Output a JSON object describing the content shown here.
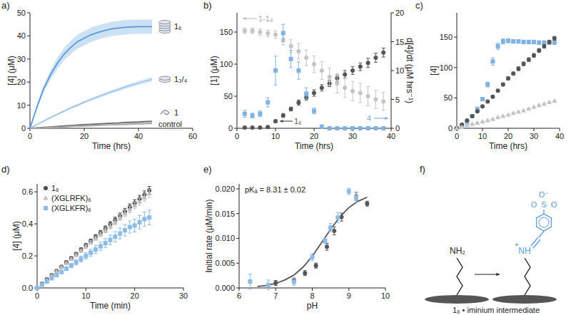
{
  "chart_data": [
    {
      "panel_label": "a)",
      "type": "line",
      "x_label": "Time (hrs)",
      "y_label": "[4] (μM)",
      "x": [
        0,
        2.5,
        5,
        7.5,
        10,
        12.5,
        15,
        17.5,
        20,
        22.5,
        25,
        27.5,
        30,
        32.5,
        35,
        37.5,
        40,
        42.5,
        45
      ],
      "xlim": [
        0,
        60
      ],
      "xticks": [
        0,
        20,
        40,
        60
      ],
      "ylim": [
        0,
        50
      ],
      "yticks": [
        0,
        10,
        20,
        30,
        40,
        50
      ],
      "series": [
        {
          "name": "1₆",
          "color": "#5b9ad9",
          "values": [
            0,
            9,
            17,
            23,
            28,
            32,
            35,
            37.5,
            39,
            40.5,
            41.5,
            42.3,
            43,
            43.4,
            43.7,
            43.9,
            44,
            44,
            44
          ],
          "error": [
            0,
            0.8,
            1.5,
            2,
            2.4,
            2.7,
            2.9,
            3,
            3.1,
            3.1,
            3.1,
            3.1,
            3.1,
            3.1,
            3.1,
            3.1,
            3.1,
            3.1,
            3.1
          ]
        },
        {
          "name": "1₃/₄",
          "color": "#9cc4ec",
          "values": [
            0,
            1.6,
            3.1,
            4.6,
            6,
            7.4,
            8.8,
            10,
            11.3,
            12.5,
            13.6,
            14.7,
            15.8,
            16.8,
            17.8,
            18.7,
            19.6,
            20.4,
            21.2
          ],
          "error": [
            0,
            0.1,
            0.2,
            0.3,
            0.4,
            0.5,
            0.5,
            0.6,
            0.6,
            0.7,
            0.7,
            0.8,
            0.8,
            0.9,
            0.9,
            1,
            1,
            1.1,
            1.1
          ]
        },
        {
          "name": "1",
          "color": "#6e6e6e",
          "values": [
            0,
            0.2,
            0.4,
            0.6,
            0.8,
            1,
            1.2,
            1.4,
            1.6,
            1.7,
            1.9,
            2,
            2.2,
            2.3,
            2.5,
            2.6,
            2.7,
            2.9,
            3
          ],
          "error": [
            0,
            0.1,
            0.1,
            0.1,
            0.2,
            0.2,
            0.2,
            0.2,
            0.3,
            0.3,
            0.3,
            0.3,
            0.3,
            0.3,
            0.4,
            0.4,
            0.4,
            0.4,
            0.4
          ]
        },
        {
          "name": "control",
          "color": "#a8a8a8",
          "values": [
            0,
            0.1,
            0.2,
            0.4,
            0.5,
            0.6,
            0.8,
            0.9,
            1,
            1.1,
            1.3,
            1.4,
            1.5,
            1.6,
            1.7,
            1.8,
            1.9,
            2,
            2.1
          ],
          "error": [
            0,
            0.1,
            0.1,
            0.1,
            0.2,
            0.2,
            0.2,
            0.2,
            0.3,
            0.3,
            0.3,
            0.3,
            0.3,
            0.3,
            0.4,
            0.4,
            0.4,
            0.4,
            0.4
          ]
        }
      ]
    },
    {
      "panel_label": "b)",
      "type": "scatter",
      "x_label": "Time (hrs)",
      "y_label": "[1] (μM)",
      "y2_label": "d[4]/dt (μM hrs⁻¹)",
      "x": [
        2,
        4,
        6,
        8,
        10,
        12,
        14,
        16,
        18,
        20,
        22,
        24,
        26,
        28,
        30,
        32,
        34,
        36,
        38
      ],
      "xlim": [
        0,
        40
      ],
      "xticks": [
        0,
        10,
        20,
        30,
        40
      ],
      "ylim": [
        0,
        180
      ],
      "yticks": [
        0,
        50,
        100,
        150
      ],
      "y2lim": [
        0,
        20
      ],
      "y2ticks": [
        0,
        5,
        10,
        15,
        20
      ],
      "series": [
        {
          "name": "1₆",
          "color": "#555555",
          "marker": "circle",
          "values": [
            1,
            1,
            1,
            2,
            11,
            20,
            30,
            40,
            48,
            55,
            63,
            70,
            78,
            84,
            90,
            96,
            102,
            110,
            118
          ],
          "error": [
            1,
            1,
            1,
            1,
            2,
            3,
            3,
            4,
            4,
            5,
            5,
            5,
            5,
            6,
            6,
            6,
            7,
            7,
            7
          ]
        },
        {
          "name": "1-1₄",
          "color": "#c4c4c4",
          "marker": "circle",
          "values": [
            152,
            152,
            150,
            148,
            146,
            138,
            128,
            120,
            110,
            100,
            90,
            80,
            70,
            63,
            58,
            55,
            50,
            45,
            42
          ],
          "error": [
            4,
            4,
            5,
            5,
            6,
            8,
            10,
            12,
            12,
            13,
            14,
            14,
            15,
            15,
            15,
            15,
            15,
            14,
            14
          ]
        },
        {
          "name": "4",
          "color": "#7fb2e5",
          "marker": "square",
          "axis": "y2",
          "values": [
            2.5,
            2.2,
            2.5,
            4.5,
            10,
            16.5,
            12,
            10,
            6,
            3,
            0.3,
            0,
            0,
            0,
            0,
            0,
            0,
            0,
            0
          ],
          "error": [
            0.6,
            0.4,
            0.5,
            0.8,
            2.5,
            1.5,
            1.5,
            1.5,
            1,
            0.5,
            0.2,
            0.1,
            0.1,
            0.1,
            0.1,
            0.1,
            0.1,
            0.1,
            0.1
          ]
        }
      ]
    },
    {
      "panel_label": "c)",
      "type": "scatter",
      "x_label": "Time (hrs)",
      "y_label": "[4]",
      "x": [
        0,
        2,
        4,
        6,
        8,
        10,
        12,
        14,
        16,
        18,
        20,
        22,
        24,
        26,
        28,
        30,
        32,
        34,
        36,
        38
      ],
      "xlim": [
        0,
        40
      ],
      "xticks": [
        0,
        10,
        20,
        30,
        40
      ],
      "ylim": [
        0,
        190
      ],
      "yticks": [
        0,
        50,
        100,
        150
      ],
      "series": [
        {
          "color": "#7fb2e5",
          "marker": "square",
          "values": [
            0,
            5,
            10,
            20,
            32,
            48,
            72,
            110,
            135,
            143,
            144,
            143,
            143,
            142,
            142,
            142,
            141,
            141,
            141,
            141
          ],
          "error": [
            0,
            0.5,
            1,
            1.5,
            2,
            3,
            4,
            6,
            5,
            4,
            3,
            3,
            3,
            3,
            3,
            3,
            3,
            3,
            3,
            3
          ]
        },
        {
          "color": "#555555",
          "marker": "circle",
          "values": [
            0,
            6,
            13,
            20,
            28,
            36,
            44,
            52,
            62,
            72,
            82,
            90,
            98,
            106,
            113,
            120,
            128,
            135,
            142,
            148
          ],
          "error": [
            0,
            0.5,
            1,
            1,
            1.5,
            1.5,
            2,
            2,
            2,
            2.5,
            2.5,
            2.5,
            3,
            3,
            3,
            3,
            3,
            3,
            3,
            3
          ]
        },
        {
          "color": "#c4c4c4",
          "marker": "triangle",
          "values": [
            0,
            2,
            5,
            7,
            9,
            11,
            13,
            15,
            18,
            20,
            22,
            25,
            27,
            29,
            32,
            35,
            38,
            40,
            43,
            45
          ],
          "error": [
            0,
            1,
            1,
            1,
            1,
            1,
            1,
            1,
            1,
            1,
            1,
            1,
            1,
            1,
            1,
            1,
            1,
            1,
            1,
            1
          ]
        }
      ]
    },
    {
      "panel_label": "d)",
      "type": "scatter",
      "x_label": "Time (min)",
      "y_label": "[4] (μM)",
      "legend": "upper left",
      "x": [
        0,
        1,
        2,
        3,
        4,
        5,
        6,
        7,
        8,
        9,
        10,
        11,
        12,
        13,
        14,
        15,
        16,
        17,
        18,
        19,
        20,
        21,
        22,
        23
      ],
      "xlim": [
        0,
        30
      ],
      "xticks": [
        0,
        10,
        20,
        30
      ],
      "ylim": [
        0,
        0.65
      ],
      "yticks": [
        {
          "value": 0,
          "label": "0.0"
        },
        {
          "value": 0.2,
          "label": "0.2"
        },
        {
          "value": 0.4,
          "label": "0.4"
        },
        {
          "value": 0.6,
          "label": "0.6"
        }
      ],
      "series": [
        {
          "name": "1₆",
          "color": "#4d4d4d",
          "marker": "circle",
          "values": [
            0,
            0.027,
            0.053,
            0.08,
            0.106,
            0.133,
            0.16,
            0.186,
            0.212,
            0.24,
            0.266,
            0.293,
            0.32,
            0.345,
            0.372,
            0.398,
            0.425,
            0.45,
            0.478,
            0.505,
            0.53,
            0.556,
            0.583,
            0.61
          ],
          "error": [
            0,
            0.002,
            0.003,
            0.004,
            0.005,
            0.006,
            0.007,
            0.008,
            0.009,
            0.01,
            0.011,
            0.012,
            0.013,
            0.014,
            0.015,
            0.016,
            0.017,
            0.018,
            0.019,
            0.02,
            0.021,
            0.022,
            0.023,
            0.024
          ]
        },
        {
          "name": "(XGLRFK)₆",
          "color": "#bdbdbd",
          "marker": "triangle",
          "values": [
            0,
            0.025,
            0.05,
            0.077,
            0.103,
            0.13,
            0.155,
            0.18,
            0.205,
            0.232,
            0.258,
            0.285,
            0.31,
            0.335,
            0.36,
            0.385,
            0.41,
            0.44,
            0.465,
            0.49,
            0.515,
            0.54,
            0.565,
            0.59
          ],
          "error": [
            0,
            0.002,
            0.003,
            0.004,
            0.005,
            0.006,
            0.007,
            0.008,
            0.009,
            0.01,
            0.011,
            0.012,
            0.013,
            0.014,
            0.015,
            0.016,
            0.017,
            0.018,
            0.019,
            0.02,
            0.021,
            0.022,
            0.023,
            0.024
          ]
        },
        {
          "name": "(XGLKFR)₆",
          "color": "#8dbbe8",
          "marker": "square",
          "values": [
            0,
            0.02,
            0.04,
            0.06,
            0.08,
            0.1,
            0.12,
            0.14,
            0.16,
            0.18,
            0.2,
            0.22,
            0.24,
            0.26,
            0.28,
            0.3,
            0.32,
            0.34,
            0.36,
            0.38,
            0.39,
            0.41,
            0.43,
            0.44
          ],
          "error": [
            0,
            0.002,
            0.004,
            0.006,
            0.008,
            0.01,
            0.012,
            0.014,
            0.016,
            0.018,
            0.02,
            0.022,
            0.024,
            0.026,
            0.028,
            0.03,
            0.032,
            0.034,
            0.036,
            0.038,
            0.04,
            0.042,
            0.044,
            0.046
          ]
        }
      ]
    },
    {
      "panel_label": "e)",
      "type": "scatter",
      "x_label": "pH",
      "y_label": "Initial rate (μM/min)",
      "annotation": "pKₐ = 8.31 ± 0.02",
      "xlim": [
        6,
        10
      ],
      "xticks": [
        6,
        7,
        8,
        9,
        10
      ],
      "ylim": [
        0,
        0.021
      ],
      "yticks": [
        {
          "value": 0,
          "label": "0.000"
        },
        {
          "value": 0.005,
          "label": "0.005"
        },
        {
          "value": 0.01,
          "label": "0.010"
        },
        {
          "value": 0.015,
          "label": "0.015"
        },
        {
          "value": 0.02,
          "label": "0.020"
        }
      ],
      "series": [
        {
          "type": "line",
          "color": "#555555",
          "x": [
            6.5,
            6.75,
            7,
            7.25,
            7.5,
            7.75,
            8,
            8.25,
            8.5,
            8.75,
            9,
            9.25,
            9.5
          ],
          "values": [
            0.0003,
            0.0005,
            0.0009,
            0.0016,
            0.0026,
            0.0042,
            0.0064,
            0.0091,
            0.0118,
            0.0143,
            0.0162,
            0.0175,
            0.0183
          ]
        },
        {
          "color": "#555555",
          "marker": "circle",
          "x": [
            7,
            7.5,
            7.8,
            8.1,
            8.4,
            8.6,
            8.8,
            9.2,
            9.5
          ],
          "values": [
            0.001,
            0.0015,
            0.003,
            0.0045,
            0.0083,
            0.0115,
            0.0143,
            0.0185,
            0.017
          ],
          "error": [
            0.0005,
            0.0005,
            0.0005,
            0.0005,
            0.0007,
            0.0008,
            0.0008,
            0.0008,
            0.0005
          ]
        },
        {
          "color": "#8dbbe8",
          "marker": "square",
          "x": [
            6.3,
            6.8,
            7.5,
            8,
            8.35,
            8.5,
            8.7,
            9,
            9.2
          ],
          "values": [
            0.0013,
            0.0006,
            0.0012,
            0.0062,
            0.0095,
            0.0122,
            0.0142,
            0.0195,
            0.0183
          ],
          "error": [
            0.0015,
            0.001,
            0.0007,
            0.0007,
            0.0006,
            0.0008,
            0.001,
            0.0006,
            0.001
          ]
        }
      ]
    }
  ],
  "diagram": {
    "panel_label": "f)",
    "amine_label": "NH₂",
    "iminium_label": "NH",
    "charge_label": "+",
    "sulfonate_labels": [
      "O⁻",
      "S",
      "O",
      "O"
    ],
    "caption": "1₆ • iminium intermediate"
  }
}
